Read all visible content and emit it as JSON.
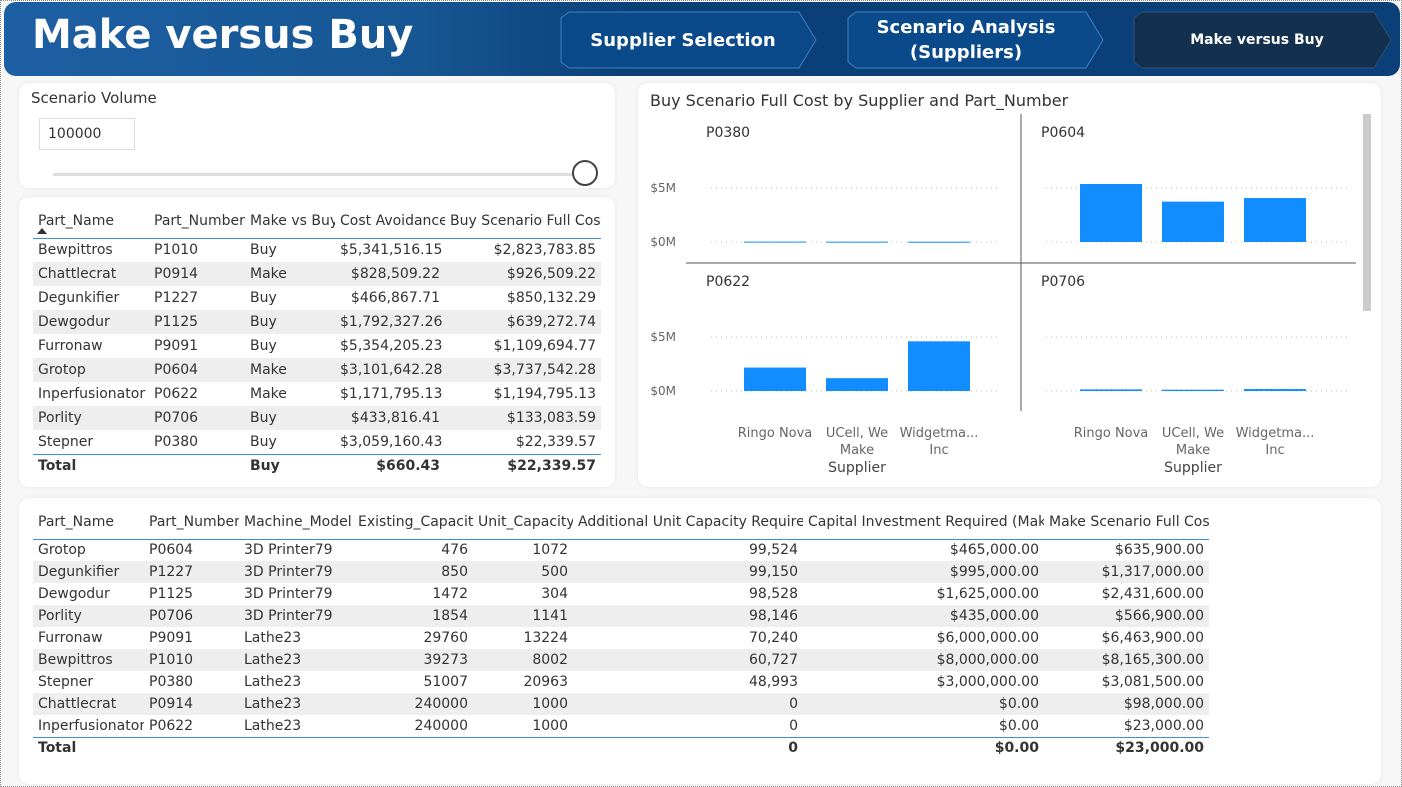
{
  "header": {
    "title": "Make versus Buy"
  },
  "nav": [
    {
      "label": "Supplier Selection"
    },
    {
      "label": "Scenario Analysis (Suppliers)"
    },
    {
      "label": "Make versus Buy"
    }
  ],
  "slicer": {
    "label": "Scenario Volume",
    "value": "100000"
  },
  "table_buy": {
    "columns": [
      "Part_Name",
      "Part_Number",
      "Make vs Buy",
      "Cost Avoidance",
      "Buy Scenario Full Cost"
    ],
    "rows": [
      [
        "Bewpittros",
        "P1010",
        "Buy",
        "$5,341,516.15",
        "$2,823,783.85"
      ],
      [
        "Chattlecrat",
        "P0914",
        "Make",
        "$828,509.22",
        "$926,509.22"
      ],
      [
        "Degunkifier",
        "P1227",
        "Buy",
        "$466,867.71",
        "$850,132.29"
      ],
      [
        "Dewgodur",
        "P1125",
        "Buy",
        "$1,792,327.26",
        "$639,272.74"
      ],
      [
        "Furronaw",
        "P9091",
        "Buy",
        "$5,354,205.23",
        "$1,109,694.77"
      ],
      [
        "Grotop",
        "P0604",
        "Make",
        "$3,101,642.28",
        "$3,737,542.28"
      ],
      [
        "Inperfusionator",
        "P0622",
        "Make",
        "$1,171,795.13",
        "$1,194,795.13"
      ],
      [
        "Porlity",
        "P0706",
        "Buy",
        "$433,816.41",
        "$133,083.59"
      ],
      [
        "Stepner",
        "P0380",
        "Buy",
        "$3,059,160.43",
        "$22,339.57"
      ]
    ],
    "total": [
      "Total",
      null,
      "Buy",
      "$660.43",
      "$22,339.57"
    ]
  },
  "chart_data": {
    "type": "bar",
    "title": "Buy Scenario Full Cost by Supplier and Part_Number",
    "x_label": "Supplier",
    "categories": [
      "Ringo Nova",
      "UCell, We Make",
      "Widgetma... Inc"
    ],
    "color": "#118dff",
    "ylim": [
      0,
      6500000
    ],
    "yticks": [
      {
        "value": 0,
        "label": "$0M"
      },
      {
        "value": 5000000,
        "label": "$5M"
      }
    ],
    "grid": true,
    "panels": [
      {
        "name": "P0380",
        "values": [
          35000,
          30000,
          25000
        ]
      },
      {
        "name": "P0604",
        "values": [
          5370000,
          3740000,
          4070000
        ]
      },
      {
        "name": "P0622",
        "values": [
          2170000,
          1190000,
          4600000
        ]
      },
      {
        "name": "P0706",
        "values": [
          150000,
          120000,
          180000
        ]
      }
    ]
  },
  "table_make": {
    "columns": [
      "Part_Name",
      "Part_Number",
      "Machine_Model",
      "Existing_Capacity",
      "Unit_Capacity",
      "Additional Unit Capacity Required",
      "Capital Investment Required (Make)",
      "Make Scenario Full Cost"
    ],
    "rows": [
      [
        "Grotop",
        "P0604",
        "3D Printer79",
        "476",
        "1072",
        "99,524",
        "$465,000.00",
        "$635,900.00"
      ],
      [
        "Degunkifier",
        "P1227",
        "3D Printer79",
        "850",
        "500",
        "99,150",
        "$995,000.00",
        "$1,317,000.00"
      ],
      [
        "Dewgodur",
        "P1125",
        "3D Printer79",
        "1472",
        "304",
        "98,528",
        "$1,625,000.00",
        "$2,431,600.00"
      ],
      [
        "Porlity",
        "P0706",
        "3D Printer79",
        "1854",
        "1141",
        "98,146",
        "$435,000.00",
        "$566,900.00"
      ],
      [
        "Furronaw",
        "P9091",
        "Lathe23",
        "29760",
        "13224",
        "70,240",
        "$6,000,000.00",
        "$6,463,900.00"
      ],
      [
        "Bewpittros",
        "P1010",
        "Lathe23",
        "39273",
        "8002",
        "60,727",
        "$8,000,000.00",
        "$8,165,300.00"
      ],
      [
        "Stepner",
        "P0380",
        "Lathe23",
        "51007",
        "20963",
        "48,993",
        "$3,000,000.00",
        "$3,081,500.00"
      ],
      [
        "Chattlecrat",
        "P0914",
        "Lathe23",
        "240000",
        "1000",
        "0",
        "$0.00",
        "$98,000.00"
      ],
      [
        "Inperfusionator",
        "P0622",
        "Lathe23",
        "240000",
        "1000",
        "0",
        "$0.00",
        "$23,000.00"
      ]
    ],
    "total": [
      "Total",
      null,
      null,
      null,
      null,
      "0",
      "$0.00",
      "$23,000.00"
    ]
  }
}
